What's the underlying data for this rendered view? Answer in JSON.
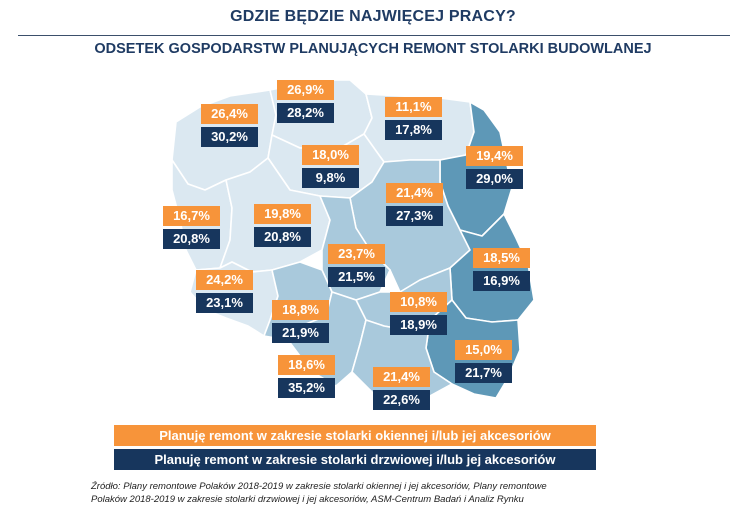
{
  "title": "GDZIE BĘDZIE NAJWIĘCEJ PRACY?",
  "subtitle": "ODSETEK GOSPODARSTW PLANUJĄCYCH REMONT STOLARKI BUDOWLANEJ",
  "colors": {
    "windows": "#f7943a",
    "doors": "#17365d",
    "region_light": "#dbe8f1",
    "region_mid": "#a9c9dc",
    "region_dark": "#5e98b7",
    "border": "#ffffff"
  },
  "regions": [
    {
      "name": "zachodniopomorskie",
      "windows": "26,4%",
      "doors": "30,2%",
      "shade": "light"
    },
    {
      "name": "pomorskie",
      "windows": "26,9%",
      "doors": "28,2%",
      "shade": "light"
    },
    {
      "name": "warmińsko-mazurskie",
      "windows": "11,1%",
      "doors": "17,8%",
      "shade": "light"
    },
    {
      "name": "kujawsko-pomorskie",
      "windows": "18,0%",
      "doors": "9,8%",
      "shade": "light"
    },
    {
      "name": "podlaskie",
      "windows": "19,4%",
      "doors": "29,0%",
      "shade": "dark"
    },
    {
      "name": "mazowieckie",
      "windows": "21,4%",
      "doors": "27,3%",
      "shade": "mid"
    },
    {
      "name": "lubuskie",
      "windows": "16,7%",
      "doors": "20,8%",
      "shade": "light"
    },
    {
      "name": "wielkopolskie",
      "windows": "19,8%",
      "doors": "20,8%",
      "shade": "light"
    },
    {
      "name": "łódzkie",
      "windows": "23,7%",
      "doors": "21,5%",
      "shade": "mid"
    },
    {
      "name": "lubelskie",
      "windows": "18,5%",
      "doors": "16,9%",
      "shade": "dark"
    },
    {
      "name": "dolnośląskie",
      "windows": "24,2%",
      "doors": "23,1%",
      "shade": "light"
    },
    {
      "name": "opolskie",
      "windows": "18,8%",
      "doors": "21,9%",
      "shade": "mid"
    },
    {
      "name": "świętokrzyskie",
      "windows": "10,8%",
      "doors": "18,9%",
      "shade": "mid"
    },
    {
      "name": "podkarpackie",
      "windows": "15,0%",
      "doors": "21,7%",
      "shade": "dark"
    },
    {
      "name": "śląskie",
      "windows": "18,6%",
      "doors": "35,2%",
      "shade": "mid"
    },
    {
      "name": "małopolskie",
      "windows": "21,4%",
      "doors": "22,6%",
      "shade": "mid"
    }
  ],
  "legend": {
    "windows": "Planuję remont w zakresie stolarki okiennej i/lub jej akcesoriów",
    "doors": "Planuję remont w zakresie stolarki drzwiowej i/lub jej akcesoriów"
  },
  "source": {
    "line1": "Źródło: Plany remontowe Polaków 2018-2019 w zakresie stolarki okiennej i jej akcesoriów,  Plany remontowe",
    "line2": "Polaków 2018-2019 w zakresie stolarki drzwiowej i jej akcesoriów, ASM-Centrum Badań i Analiz Rynku"
  }
}
